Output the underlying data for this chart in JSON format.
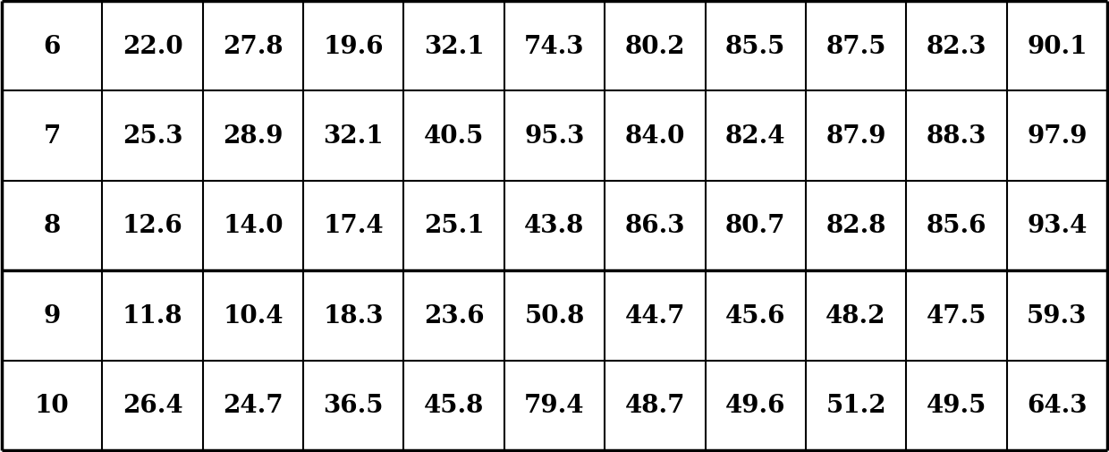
{
  "rows": [
    [
      "6",
      "22.0",
      "27.8",
      "19.6",
      "32.1",
      "74.3",
      "80.2",
      "85.5",
      "87.5",
      "82.3",
      "90.1"
    ],
    [
      "7",
      "25.3",
      "28.9",
      "32.1",
      "40.5",
      "95.3",
      "84.0",
      "82.4",
      "87.9",
      "88.3",
      "97.9"
    ],
    [
      "8",
      "12.6",
      "14.0",
      "17.4",
      "25.1",
      "43.8",
      "86.3",
      "80.7",
      "82.8",
      "85.6",
      "93.4"
    ],
    [
      "9",
      "11.8",
      "10.4",
      "18.3",
      "23.6",
      "50.8",
      "44.7",
      "45.6",
      "48.2",
      "47.5",
      "59.3"
    ],
    [
      "10",
      "26.4",
      "24.7",
      "36.5",
      "45.8",
      "79.4",
      "48.7",
      "49.6",
      "51.2",
      "49.5",
      "64.3"
    ]
  ],
  "n_rows": 5,
  "n_cols": 11,
  "thick_border_after_row": 3,
  "background_color": "#ffffff",
  "text_color": "#000000",
  "grid_color": "#000000",
  "font_size": 20,
  "thin_lw": 1.5,
  "thick_lw": 2.5,
  "outer_lw": 2.5,
  "fig_width": 12.4,
  "fig_height": 5.06,
  "dpi": 100
}
